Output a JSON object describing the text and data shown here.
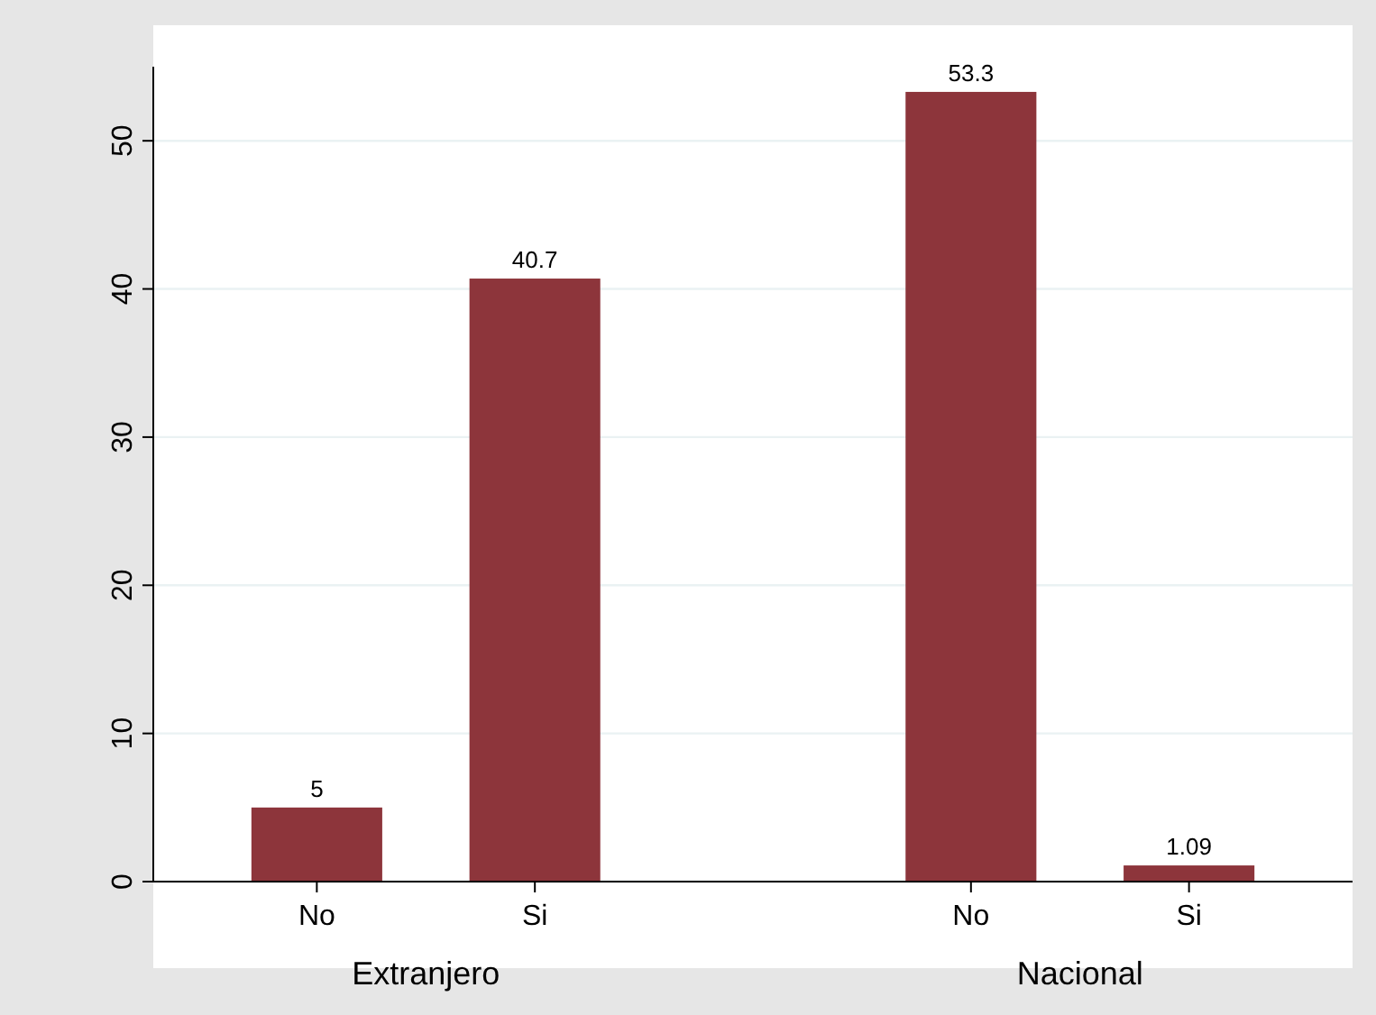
{
  "chart_data": {
    "type": "bar",
    "categories": [
      "No",
      "Si",
      "No",
      "Si"
    ],
    "values": [
      5,
      40.7,
      53.3,
      1.09
    ],
    "color": "#8d353b",
    "data_labels": true,
    "ylim": [
      0,
      55
    ],
    "yticks": [
      0,
      10,
      20,
      30,
      40,
      50
    ],
    "grid": "y",
    "annotations": [
      "Extranjero",
      "Nacional"
    ]
  }
}
